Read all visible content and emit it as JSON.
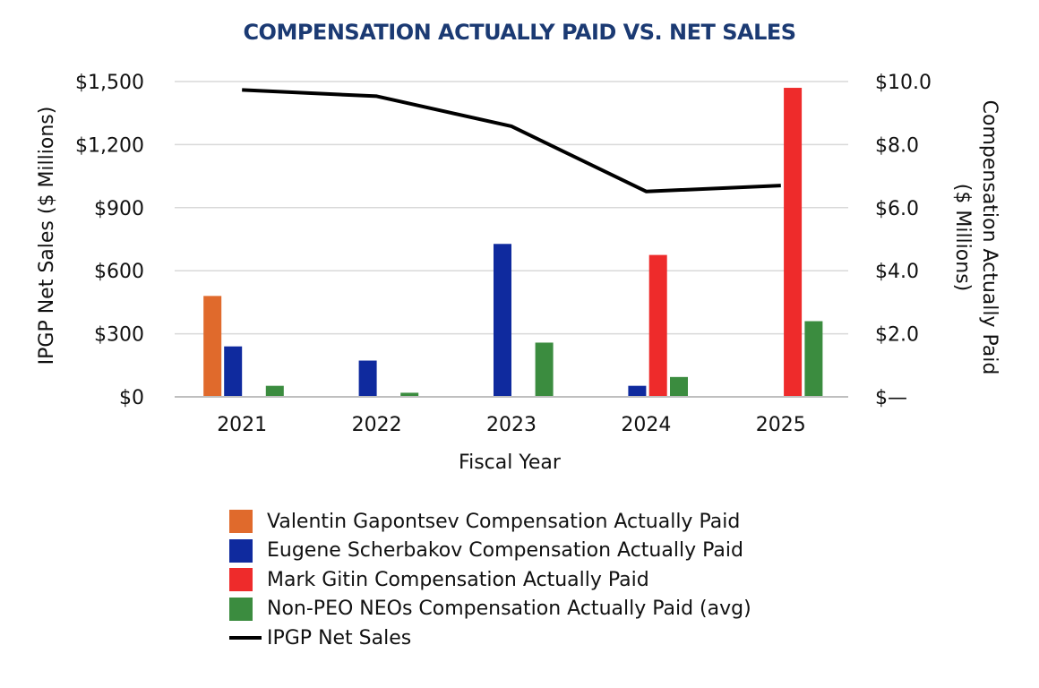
{
  "chart_data": {
    "type": "bar",
    "title": "COMPENSATION ACTUALLY PAID VS. NET SALES",
    "xlabel": "Fiscal Year",
    "ylabel_left": "IPGP Net Sales ($ Millions)",
    "ylabel_right_line1": "Compensation Actually Paid",
    "ylabel_right_line2": "($ Millions)",
    "categories": [
      "2021",
      "2022",
      "2023",
      "2024",
      "2025"
    ],
    "left_axis": {
      "ylim": [
        0,
        1500
      ],
      "ticks": [
        0,
        300,
        600,
        900,
        1200,
        1500
      ],
      "tick_labels": [
        "$0",
        "$300",
        "$600",
        "$900",
        "$1,200",
        "$1,500"
      ]
    },
    "right_axis": {
      "ylim": [
        0,
        10
      ],
      "ticks": [
        0,
        2,
        4,
        6,
        8,
        10
      ],
      "tick_labels": [
        "$—",
        "$2.0",
        "$4.0",
        "$6.0",
        "$8.0",
        "$10.0"
      ]
    },
    "grid": true,
    "bar_series": [
      {
        "name": "Valentin Gapontsev Compensation Actually Paid",
        "color": "#e06a2c",
        "values": [
          3.2,
          null,
          null,
          null,
          null
        ]
      },
      {
        "name": "Eugene Scherbakov Compensation Actually Paid",
        "color": "#0f2a9e",
        "values": [
          1.6,
          1.15,
          4.85,
          0.35,
          null
        ]
      },
      {
        "name": "Mark Gitin Compensation Actually Paid",
        "color": "#ee2b2b",
        "values": [
          null,
          null,
          null,
          4.5,
          9.8
        ]
      },
      {
        "name": "Non-PEO NEOs Compensation Actually Paid (avg)",
        "color": "#3b8c3f",
        "values": [
          0.35,
          0.13,
          1.72,
          0.63,
          2.4
        ]
      }
    ],
    "line_series": {
      "name": "IPGP Net Sales",
      "color": "#000000",
      "axis": "left",
      "values": [
        1460,
        1430,
        1287,
        977,
        1005
      ]
    },
    "legend_position": "bottom"
  }
}
